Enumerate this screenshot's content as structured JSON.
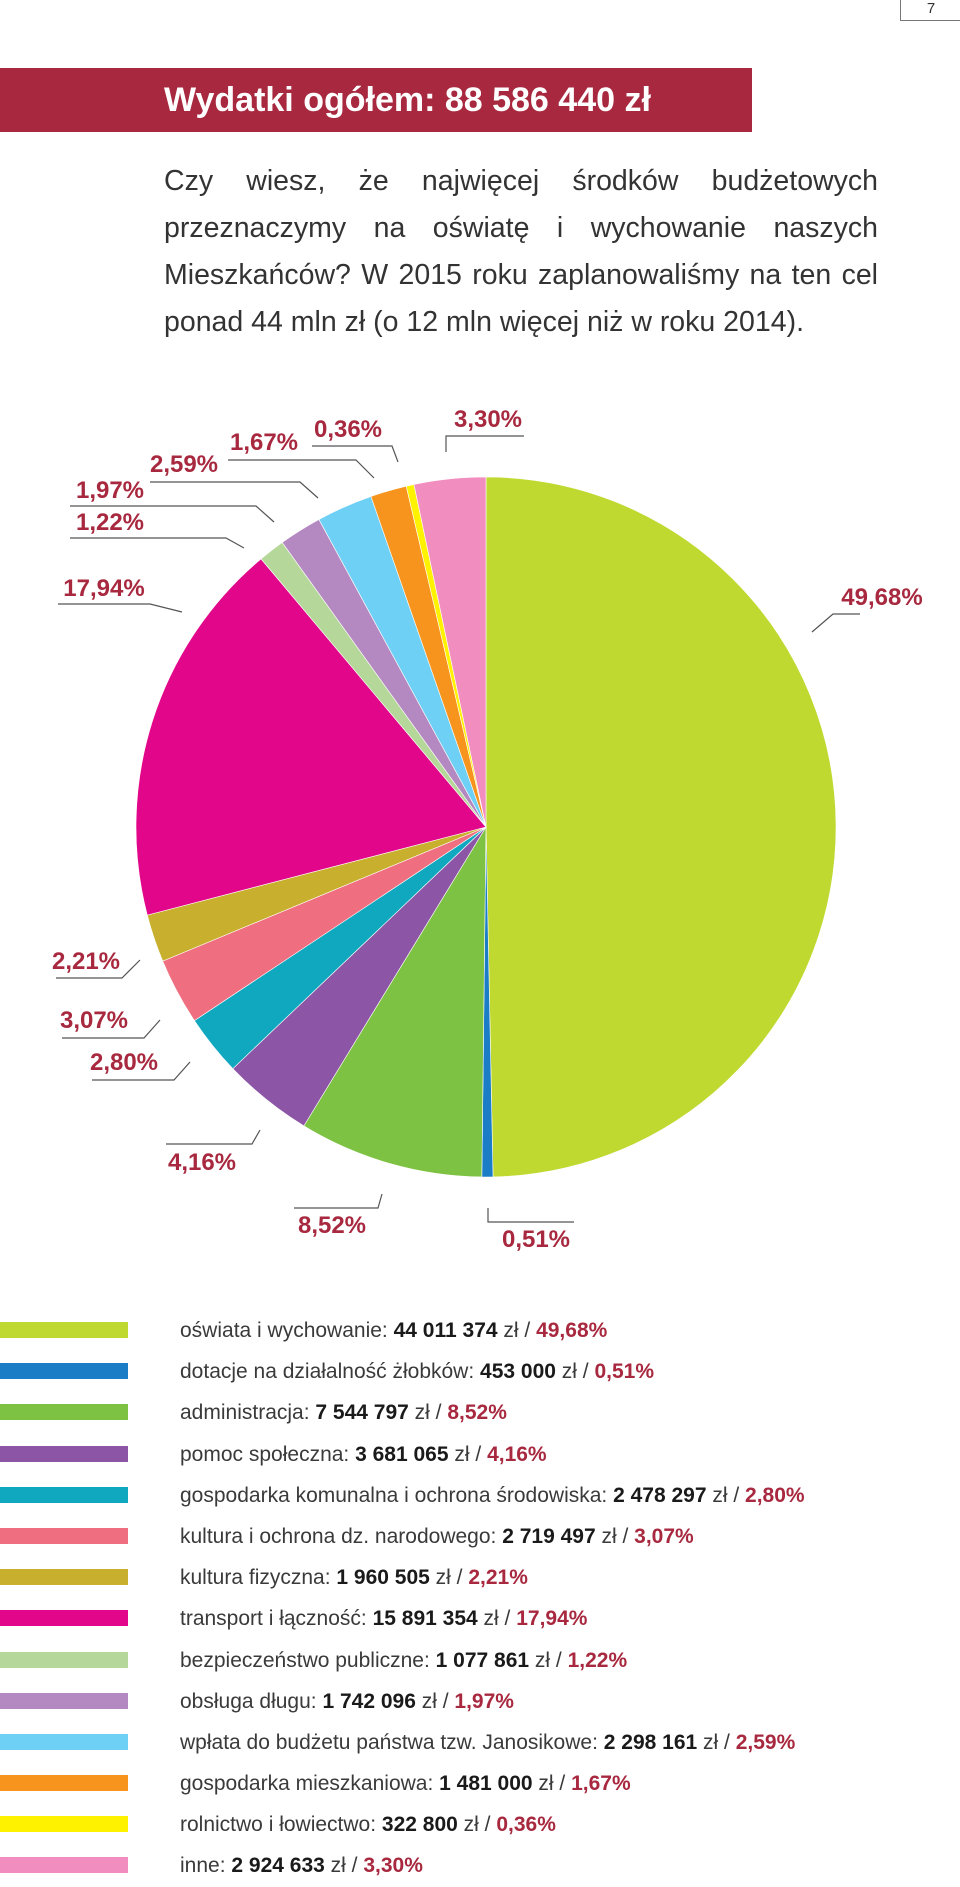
{
  "page_number": "7",
  "header": {
    "title": "Wydatki ogółem: 88 586 440 zł",
    "intro": "Czy wiesz, że najwięcej środków budżetowych przeznaczymy na oświatę i wychowanie naszych Mieszkańców? W 2015 roku zaplanowaliśmy na ten cel ponad 44 mln zł (o 12 mln więcej niż w roku 2014)."
  },
  "colors": {
    "accent": "#a8293f",
    "label": "#a8293f",
    "leader": "#555555"
  },
  "chart_data": {
    "type": "pie",
    "start": "12 o'clock",
    "direction": "clockwise",
    "slices": [
      {
        "label": "oświata i wychowanie",
        "amount": "44 011 374",
        "percent_label": "49,68%",
        "value": 49.68,
        "color": "#c0d930"
      },
      {
        "label": "dotacje na działalność żłobków",
        "amount": "453 000",
        "percent_label": "0,51%",
        "value": 0.51,
        "color": "#1b7dc6"
      },
      {
        "label": "administracja",
        "amount": "7 544 797",
        "percent_label": "8,52%",
        "value": 8.52,
        "color": "#7dc242"
      },
      {
        "label": "pomoc społeczna",
        "amount": "3 681 065",
        "percent_label": "4,16%",
        "value": 4.16,
        "color": "#8c55a5"
      },
      {
        "label": "gospodarka komunalna i ochrona środowiska",
        "amount": "2 478 297",
        "percent_label": "2,80%",
        "value": 2.8,
        "color": "#10a8bf"
      },
      {
        "label": "kultura i ochrona dz. narodowego",
        "amount": "2 719 497",
        "percent_label": "3,07%",
        "value": 3.07,
        "color": "#ef6f80"
      },
      {
        "label": "kultura fizyczna",
        "amount": "1 960 505",
        "percent_label": "2,21%",
        "value": 2.21,
        "color": "#c8b02e"
      },
      {
        "label": "transport i łączność",
        "amount": "15 891 354",
        "percent_label": "17,94%",
        "value": 17.94,
        "color": "#e2078a"
      },
      {
        "label": "bezpieczeństwo publiczne",
        "amount": "1 077 861",
        "percent_label": "1,22%",
        "value": 1.22,
        "color": "#b5d89a"
      },
      {
        "label": "obsługa długu",
        "amount": "1 742 096",
        "percent_label": "1,97%",
        "value": 1.97,
        "color": "#b488c0"
      },
      {
        "label": "wpłata do budżetu państwa tzw. Janosikowe",
        "amount": "2 298 161",
        "percent_label": "2,59%",
        "value": 2.59,
        "color": "#6fd0f6"
      },
      {
        "label": "gospodarka mieszkaniowa",
        "amount": "1 481 000",
        "percent_label": "1,67%",
        "value": 1.67,
        "color": "#f7941d"
      },
      {
        "label": "rolnictwo i łowiectwo",
        "amount": "322 800",
        "percent_label": "0,36%",
        "value": 0.36,
        "color": "#fff200"
      },
      {
        "label": "inne",
        "amount": "2 924 633",
        "percent_label": "3,30%",
        "value": 3.3,
        "color": "#f28dbf"
      }
    ],
    "currency_unit": "zł"
  }
}
